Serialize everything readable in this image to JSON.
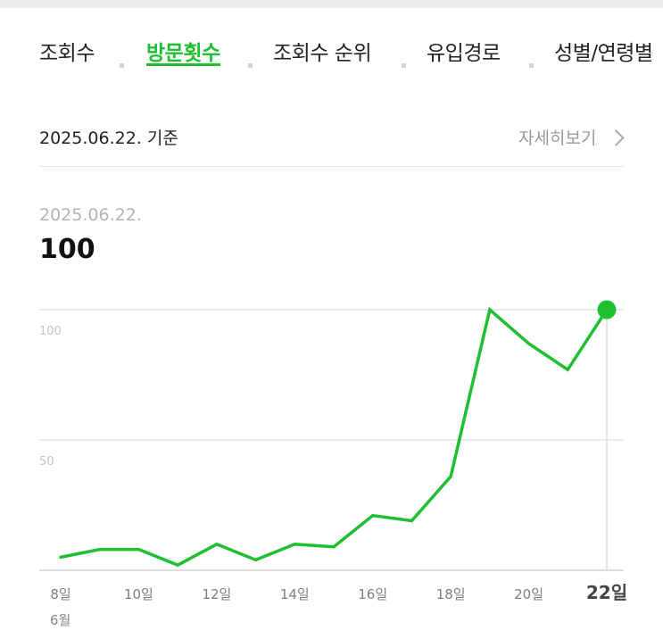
{
  "tabs": [
    {
      "label": "조회수",
      "active": false
    },
    {
      "label": "방문횟수",
      "active": true
    },
    {
      "label": "조회수 순위",
      "active": false
    },
    {
      "label": "유입경로",
      "active": false
    },
    {
      "label": "성별/연령별",
      "active": false
    }
  ],
  "summary": {
    "basis_date": "2025.06.22. 기준",
    "detail_link": "자세히보기",
    "selected_date": "2025.06.22.",
    "selected_value": "100"
  },
  "colors": {
    "accent": "#1ec031"
  },
  "chart_data": {
    "type": "line",
    "title": "",
    "xlabel": "",
    "ylabel": "",
    "month_label": "6월",
    "x": [
      8,
      9,
      10,
      11,
      12,
      13,
      14,
      15,
      16,
      17,
      18,
      19,
      20,
      21,
      22
    ],
    "x_tick_labels": [
      {
        "x": 8,
        "label": "8일"
      },
      {
        "x": 10,
        "label": "10일"
      },
      {
        "x": 12,
        "label": "12일"
      },
      {
        "x": 14,
        "label": "14일"
      },
      {
        "x": 16,
        "label": "16일"
      },
      {
        "x": 18,
        "label": "18일"
      },
      {
        "x": 20,
        "label": "20일"
      },
      {
        "x": 22,
        "label": "22일",
        "highlight": true
      }
    ],
    "series": [
      {
        "values": [
          5,
          8,
          8,
          2,
          10,
          4,
          10,
          9,
          21,
          19,
          36,
          100,
          87,
          77,
          100
        ]
      }
    ],
    "y_ticks": [
      50,
      100
    ],
    "ylim": [
      0,
      100
    ],
    "highlight_x": 22,
    "grid": true
  }
}
